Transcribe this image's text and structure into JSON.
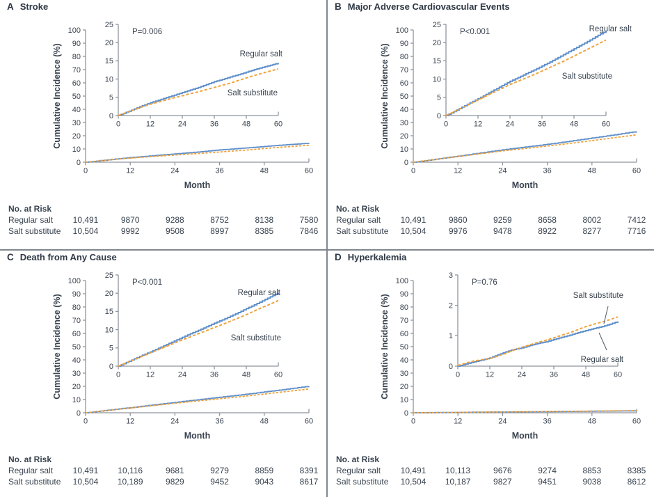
{
  "colors": {
    "regular_salt": "#5f8fca",
    "salt_substitute": "#f0a23b",
    "axis": "#8e959d",
    "text": "#39434f",
    "leader": "#5a6470"
  },
  "chart_data": [
    {
      "type": "line",
      "letter": "A",
      "title": "Stroke",
      "p_value": "P=0.006",
      "xlabel": "Month",
      "ylabel": "Cumulative Incidence (%)",
      "x_ticks": [
        0,
        12,
        24,
        36,
        48,
        60
      ],
      "main_axis": {
        "ylim": [
          0,
          100
        ],
        "yticks": [
          0,
          10,
          20,
          30,
          40,
          50,
          60,
          70,
          80,
          90,
          100
        ]
      },
      "inset_axis": {
        "ylim": [
          0,
          25
        ],
        "yticks": [
          0,
          5,
          10,
          15,
          20,
          25
        ]
      },
      "series": [
        {
          "name": "Regular salt",
          "style": "solid",
          "points": [
            [
              0,
              0
            ],
            [
              3,
              0.9
            ],
            [
              6,
              1.8
            ],
            [
              9,
              2.7
            ],
            [
              12,
              3.5
            ],
            [
              15,
              4.2
            ],
            [
              18,
              4.9
            ],
            [
              21,
              5.6
            ],
            [
              24,
              6.3
            ],
            [
              27,
              7.0
            ],
            [
              30,
              7.7
            ],
            [
              33,
              8.5
            ],
            [
              36,
              9.3
            ],
            [
              39,
              9.9
            ],
            [
              42,
              10.6
            ],
            [
              45,
              11.2
            ],
            [
              48,
              11.9
            ],
            [
              51,
              12.6
            ],
            [
              54,
              13.2
            ],
            [
              57,
              13.8
            ],
            [
              60,
              14.4
            ]
          ]
        },
        {
          "name": "Salt substitute",
          "style": "dashed",
          "points": [
            [
              0,
              0
            ],
            [
              3,
              0.8
            ],
            [
              6,
              1.6
            ],
            [
              9,
              2.4
            ],
            [
              12,
              3.1
            ],
            [
              15,
              3.7
            ],
            [
              18,
              4.3
            ],
            [
              21,
              4.9
            ],
            [
              24,
              5.4
            ],
            [
              27,
              6.0
            ],
            [
              30,
              6.5
            ],
            [
              33,
              7.1
            ],
            [
              36,
              7.7
            ],
            [
              39,
              8.3
            ],
            [
              42,
              8.9
            ],
            [
              45,
              9.6
            ],
            [
              48,
              10.3
            ],
            [
              51,
              11.0
            ],
            [
              54,
              11.6
            ],
            [
              57,
              12.2
            ],
            [
              60,
              12.8
            ]
          ]
        }
      ],
      "at_risk": {
        "title": "No. at Risk",
        "rows": [
          {
            "label": "Regular salt",
            "values": [
              "10,491",
              "9870",
              "9288",
              "8752",
              "8138",
              "7580"
            ]
          },
          {
            "label": "Salt substitute",
            "values": [
              "10,504",
              "9992",
              "9508",
              "8997",
              "8385",
              "7846"
            ]
          }
        ]
      }
    },
    {
      "type": "line",
      "letter": "B",
      "title": "Major Adverse Cardiovascular Events",
      "p_value": "P<0.001",
      "xlabel": "Month",
      "ylabel": "Cumulative Incidence (%)",
      "x_ticks": [
        0,
        12,
        24,
        36,
        48,
        60
      ],
      "main_axis": {
        "ylim": [
          0,
          100
        ],
        "yticks": [
          0,
          10,
          20,
          30,
          40,
          50,
          60,
          70,
          80,
          90,
          100
        ]
      },
      "inset_axis": {
        "ylim": [
          0,
          25
        ],
        "yticks": [
          0,
          5,
          10,
          15,
          20,
          25
        ]
      },
      "series": [
        {
          "name": "Regular salt",
          "style": "solid",
          "points": [
            [
              0,
              0
            ],
            [
              3,
              1.1
            ],
            [
              6,
              2.3
            ],
            [
              9,
              3.5
            ],
            [
              12,
              4.6
            ],
            [
              15,
              5.8
            ],
            [
              18,
              7.0
            ],
            [
              21,
              8.2
            ],
            [
              24,
              9.4
            ],
            [
              27,
              10.4
            ],
            [
              30,
              11.5
            ],
            [
              33,
              12.5
            ],
            [
              36,
              13.6
            ],
            [
              39,
              14.7
            ],
            [
              42,
              15.9
            ],
            [
              45,
              17.1
            ],
            [
              48,
              18.3
            ],
            [
              51,
              19.5
            ],
            [
              54,
              20.7
            ],
            [
              57,
              22.0
            ],
            [
              60,
              23.2
            ]
          ]
        },
        {
          "name": "Salt substitute",
          "style": "dashed",
          "points": [
            [
              0,
              0
            ],
            [
              3,
              1.0
            ],
            [
              6,
              2.1
            ],
            [
              9,
              3.2
            ],
            [
              12,
              4.3
            ],
            [
              15,
              5.3
            ],
            [
              18,
              6.4
            ],
            [
              21,
              7.4
            ],
            [
              24,
              8.5
            ],
            [
              27,
              9.4
            ],
            [
              30,
              10.3
            ],
            [
              33,
              11.2
            ],
            [
              36,
              12.2
            ],
            [
              39,
              13.2
            ],
            [
              42,
              14.2
            ],
            [
              45,
              15.2
            ],
            [
              48,
              16.3
            ],
            [
              51,
              17.4
            ],
            [
              54,
              18.5
            ],
            [
              57,
              19.6
            ],
            [
              60,
              20.7
            ]
          ]
        }
      ],
      "at_risk": {
        "title": "No. at Risk",
        "rows": [
          {
            "label": "Regular salt",
            "values": [
              "10,491",
              "9860",
              "9259",
              "8658",
              "8002",
              "7412"
            ]
          },
          {
            "label": "Salt substitute",
            "values": [
              "10,504",
              "9976",
              "9478",
              "8922",
              "8277",
              "7716"
            ]
          }
        ]
      }
    },
    {
      "type": "line",
      "letter": "C",
      "title": "Death from Any Cause",
      "p_value": "P<0.001",
      "xlabel": "Month",
      "ylabel": "Cumulative Incidence (%)",
      "x_ticks": [
        0,
        12,
        24,
        36,
        48,
        60
      ],
      "main_axis": {
        "ylim": [
          0,
          100
        ],
        "yticks": [
          0,
          10,
          20,
          30,
          40,
          50,
          60,
          70,
          80,
          90,
          100
        ]
      },
      "inset_axis": {
        "ylim": [
          0,
          25
        ],
        "yticks": [
          0,
          5,
          10,
          15,
          20,
          25
        ]
      },
      "series": [
        {
          "name": "Regular salt",
          "style": "solid",
          "points": [
            [
              0,
              0
            ],
            [
              3,
              1.0
            ],
            [
              6,
              2.0
            ],
            [
              9,
              3.0
            ],
            [
              12,
              3.9
            ],
            [
              15,
              4.9
            ],
            [
              18,
              5.9
            ],
            [
              21,
              6.9
            ],
            [
              24,
              7.9
            ],
            [
              27,
              8.9
            ],
            [
              30,
              9.8
            ],
            [
              33,
              10.8
            ],
            [
              36,
              11.8
            ],
            [
              39,
              12.7
            ],
            [
              42,
              13.7
            ],
            [
              45,
              14.7
            ],
            [
              48,
              15.8
            ],
            [
              51,
              16.8
            ],
            [
              54,
              17.9
            ],
            [
              57,
              19.0
            ],
            [
              60,
              20.1
            ]
          ]
        },
        {
          "name": "Salt substitute",
          "style": "dashed",
          "points": [
            [
              0,
              0
            ],
            [
              3,
              0.9
            ],
            [
              6,
              1.8
            ],
            [
              9,
              2.7
            ],
            [
              12,
              3.6
            ],
            [
              15,
              4.5
            ],
            [
              18,
              5.4
            ],
            [
              21,
              6.3
            ],
            [
              24,
              7.2
            ],
            [
              27,
              8.0
            ],
            [
              30,
              8.9
            ],
            [
              33,
              9.7
            ],
            [
              36,
              10.6
            ],
            [
              39,
              11.4
            ],
            [
              42,
              12.3
            ],
            [
              45,
              13.2
            ],
            [
              48,
              14.1
            ],
            [
              51,
              15.1
            ],
            [
              54,
              16.1
            ],
            [
              57,
              17.0
            ],
            [
              60,
              18.0
            ]
          ]
        }
      ],
      "at_risk": {
        "title": "No. at Risk",
        "rows": [
          {
            "label": "Regular salt",
            "values": [
              "10,491",
              "10,116",
              "9681",
              "9279",
              "8859",
              "8391"
            ]
          },
          {
            "label": "Salt substitute",
            "values": [
              "10,504",
              "10,189",
              "9829",
              "9452",
              "9043",
              "8617"
            ]
          }
        ]
      }
    },
    {
      "type": "line",
      "letter": "D",
      "title": "Hyperkalemia",
      "p_value": "P=0.76",
      "xlabel": "Month",
      "ylabel": "Cumulative Incidence (%)",
      "x_ticks": [
        0,
        12,
        24,
        36,
        48,
        60
      ],
      "main_axis": {
        "ylim": [
          0,
          100
        ],
        "yticks": [
          0,
          10,
          20,
          30,
          40,
          50,
          60,
          70,
          80,
          90,
          100
        ]
      },
      "inset_axis": {
        "ylim": [
          0,
          3
        ],
        "yticks": [
          0,
          1,
          2,
          3
        ]
      },
      "series": [
        {
          "name": "Regular salt",
          "style": "solid",
          "points": [
            [
              0,
              0
            ],
            [
              3,
              0.07
            ],
            [
              6,
              0.14
            ],
            [
              9,
              0.2
            ],
            [
              12,
              0.27
            ],
            [
              15,
              0.37
            ],
            [
              18,
              0.47
            ],
            [
              21,
              0.55
            ],
            [
              24,
              0.6
            ],
            [
              27,
              0.68
            ],
            [
              30,
              0.75
            ],
            [
              33,
              0.8
            ],
            [
              36,
              0.88
            ],
            [
              39,
              0.95
            ],
            [
              42,
              1.02
            ],
            [
              45,
              1.1
            ],
            [
              48,
              1.17
            ],
            [
              51,
              1.24
            ],
            [
              54,
              1.3
            ],
            [
              57,
              1.38
            ],
            [
              60,
              1.47
            ]
          ]
        },
        {
          "name": "Salt substitute",
          "style": "dashed",
          "points": [
            [
              0,
              0.02
            ],
            [
              3,
              0.1
            ],
            [
              6,
              0.17
            ],
            [
              9,
              0.21
            ],
            [
              12,
              0.25
            ],
            [
              15,
              0.33
            ],
            [
              18,
              0.42
            ],
            [
              21,
              0.53
            ],
            [
              24,
              0.62
            ],
            [
              27,
              0.7
            ],
            [
              30,
              0.78
            ],
            [
              33,
              0.85
            ],
            [
              36,
              0.93
            ],
            [
              39,
              1.02
            ],
            [
              42,
              1.1
            ],
            [
              45,
              1.2
            ],
            [
              48,
              1.3
            ],
            [
              51,
              1.38
            ],
            [
              54,
              1.45
            ],
            [
              57,
              1.53
            ],
            [
              60,
              1.62
            ]
          ]
        }
      ],
      "at_risk": {
        "title": "No. at Risk",
        "rows": [
          {
            "label": "Regular salt",
            "values": [
              "10,491",
              "10,113",
              "9676",
              "9274",
              "8853",
              "8385"
            ]
          },
          {
            "label": "Salt substitute",
            "values": [
              "10,504",
              "10,187",
              "9827",
              "9451",
              "9038",
              "8612"
            ]
          }
        ]
      }
    }
  ]
}
